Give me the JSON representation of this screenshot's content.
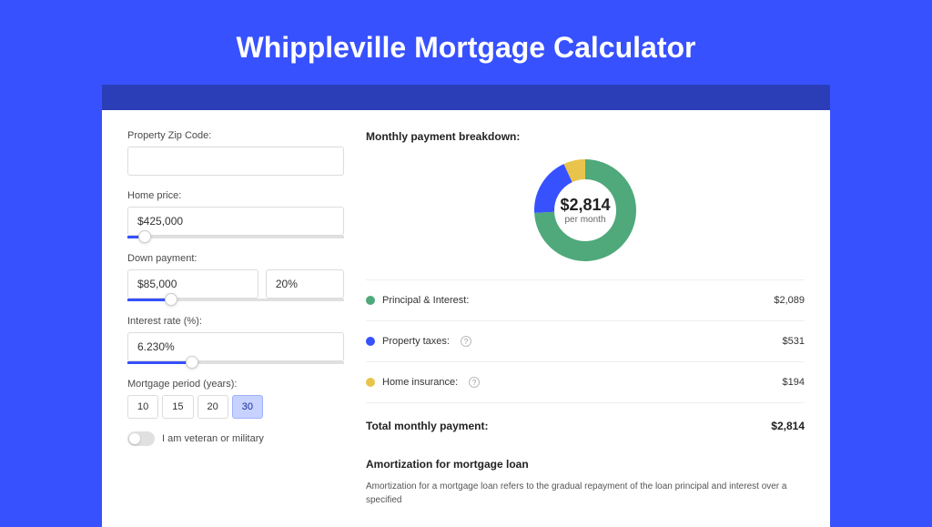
{
  "title": "Whippleville Mortgage Calculator",
  "colors": {
    "page_bg": "#3751ff",
    "card_shadow": "#2b3eb8",
    "accent": "#3751ff"
  },
  "form": {
    "zip": {
      "label": "Property Zip Code:",
      "value": ""
    },
    "home_price": {
      "label": "Home price:",
      "value": "$425,000",
      "slider_pct": 8
    },
    "down_payment": {
      "label": "Down payment:",
      "amount": "$85,000",
      "percent": "20%",
      "slider_pct": 20
    },
    "interest": {
      "label": "Interest rate (%):",
      "value": "6.230%",
      "slider_pct": 30
    },
    "period": {
      "label": "Mortgage period (years):",
      "options": [
        "10",
        "15",
        "20",
        "30"
      ],
      "selected": "30"
    },
    "veteran": {
      "label": "I am veteran or military",
      "checked": false
    }
  },
  "breakdown": {
    "title": "Monthly payment breakdown:",
    "donut": {
      "amount": "$2,814",
      "subtext": "per month",
      "slices": [
        {
          "key": "principal_interest",
          "value": 2089,
          "fraction": 0.742,
          "color": "#4fa97a"
        },
        {
          "key": "property_taxes",
          "value": 531,
          "fraction": 0.189,
          "color": "#3751ff"
        },
        {
          "key": "home_insurance",
          "value": 194,
          "fraction": 0.069,
          "color": "#e8c44c"
        }
      ],
      "ring_thickness": 22
    },
    "items": [
      {
        "color": "#4fa97a",
        "label": "Principal & Interest:",
        "help": false,
        "value": "$2,089"
      },
      {
        "color": "#3751ff",
        "label": "Property taxes:",
        "help": true,
        "value": "$531"
      },
      {
        "color": "#e8c44c",
        "label": "Home insurance:",
        "help": true,
        "value": "$194"
      }
    ],
    "total": {
      "label": "Total monthly payment:",
      "value": "$2,814"
    }
  },
  "amortization": {
    "title": "Amortization for mortgage loan",
    "text": "Amortization for a mortgage loan refers to the gradual repayment of the loan principal and interest over a specified"
  }
}
